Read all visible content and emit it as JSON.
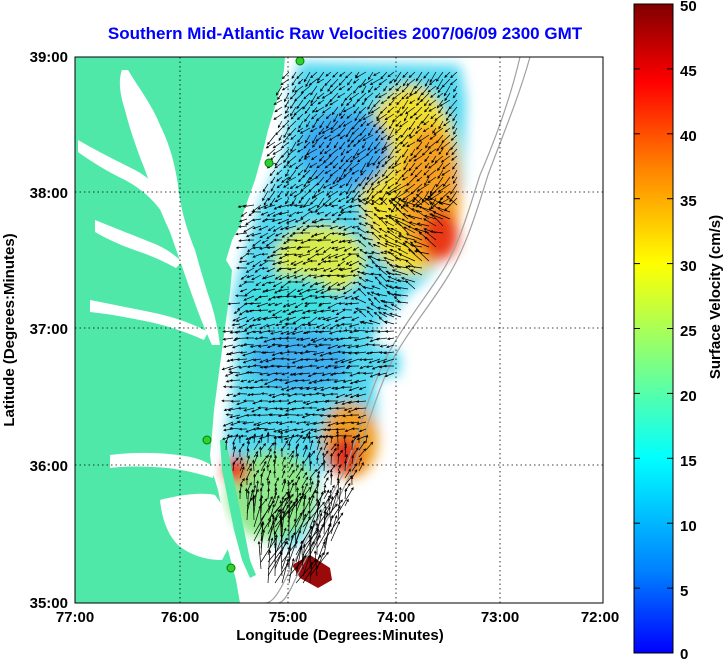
{
  "title": "Southern Mid-Atlantic Raw Velocities 2007/06/09 2300 GMT",
  "xlabel": "Longitude (Degrees:Minutes)",
  "ylabel": "Latitude (Degrees:Minutes)",
  "colorbar_label": "Surface Velocity (cm/s)",
  "x_ticks": [
    "77:00",
    "76:00",
    "75:00",
    "74:00",
    "73:00",
    "72:00"
  ],
  "y_ticks": [
    "39:00",
    "38:00",
    "37:00",
    "36:00",
    "35:00"
  ],
  "colorbar_ticks": [
    "50",
    "45",
    "40",
    "35",
    "30",
    "25",
    "20",
    "15",
    "10",
    "5",
    "0"
  ],
  "colors": {
    "land": "#4fe8a8",
    "water": "#ffffff",
    "title": "#0000ff",
    "colormap": [
      "#0000ff",
      "#0080ff",
      "#00ffff",
      "#80ff80",
      "#ffff00",
      "#ff8000",
      "#ff0000",
      "#800000"
    ]
  },
  "chart_data": {
    "type": "heatmap",
    "subtype": "surface current vector field over map",
    "xlim_deg": [
      -77,
      -72
    ],
    "ylim_deg": [
      35,
      39
    ],
    "colorbar_range_cm_s": [
      0,
      50
    ],
    "grid": true,
    "stations": [
      {
        "lon": -75.12,
        "lat": 38.98
      },
      {
        "lon": -75.16,
        "lat": 38.22
      },
      {
        "lon": -75.72,
        "lat": 36.18
      },
      {
        "lon": -75.48,
        "lat": 35.25
      }
    ]
  }
}
